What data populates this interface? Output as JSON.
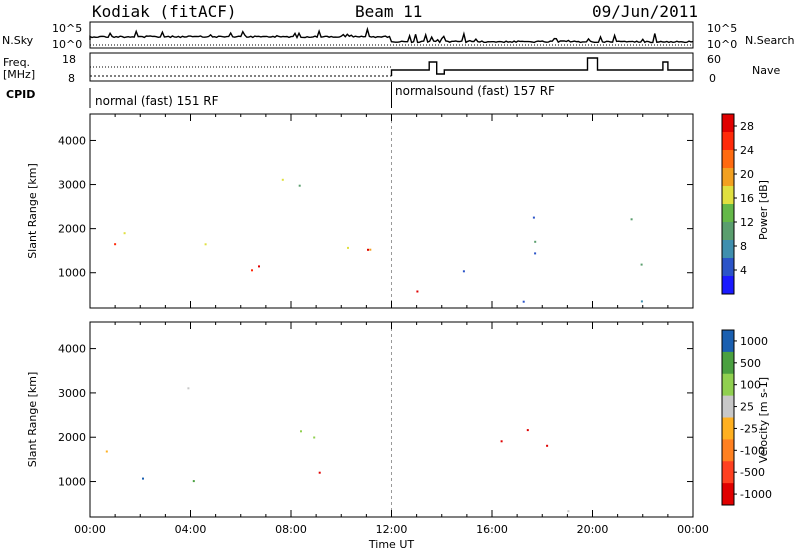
{
  "header": {
    "station": "Kodiak (fitACF)",
    "beam": "Beam 11",
    "date": "09/Jun/2011"
  },
  "summary": {
    "left_top_label": "N.Sky",
    "left_mid_label_1": "Freq.",
    "left_mid_label_2": "[MHz]",
    "left_cpid_label": "CPID",
    "right_top_label": "N.Search",
    "right_mid_label": "Nave",
    "noise_axis_top": "10^5",
    "noise_axis_bottom": "10^0",
    "freq_axis_top": "18",
    "freq_axis_bottom": "8",
    "nave_axis_top": "60",
    "nave_axis_bottom": "0",
    "cpid_segments": [
      {
        "label": "normal (fast) 151 RF",
        "start_hour": 0
      },
      {
        "label": "normalsound (fast) 157 RF",
        "start_hour": 12
      }
    ]
  },
  "colors": {
    "power": [
      "#1a1aff",
      "#2b54c8",
      "#3f8fae",
      "#5a9e6e",
      "#64b848",
      "#e0e040",
      "#f2a020",
      "#ff6a10",
      "#ff2a0a",
      "#e00000"
    ],
    "velocity": [
      "#e00000",
      "#ff4020",
      "#ff8020",
      "#ffb020",
      "#c8c8c8",
      "#90d050",
      "#4aa040",
      "#1a5fb0"
    ],
    "ground_scatter": "#bebebe"
  },
  "chart_data": [
    {
      "type": "heatmap",
      "name": "power_panel",
      "xlabel": "",
      "ylabel": "Slant Range [km]",
      "x_range_hours": [
        0,
        24
      ],
      "ylim": [
        200,
        4600
      ],
      "y_ticks": [
        "1000",
        "2000",
        "3000",
        "4000"
      ],
      "colorbar_label": "Power [dB]",
      "colorbar_ticks": [
        "4",
        "8",
        "12",
        "16",
        "20",
        "24",
        "28"
      ],
      "regions": [
        {
          "x0": 0.3,
          "x1": 12,
          "y0": 1500,
          "y1": 2300,
          "level": 0.55
        },
        {
          "x0": 4,
          "x1": 11.5,
          "y0": 700,
          "y1": 1800,
          "level": 0.85
        },
        {
          "x0": 0.5,
          "x1": 4.5,
          "y0": 1300,
          "y1": 1700,
          "level": 0.9
        },
        {
          "x0": 9,
          "x1": 13.5,
          "y0": 300,
          "y1": 700,
          "level": 0.95
        },
        {
          "x0": 0.5,
          "x1": 4,
          "y0": 2000,
          "y1": 2200,
          "level": 0.35
        },
        {
          "x0": 3,
          "x1": 9,
          "y0": 2700,
          "y1": 3500,
          "level": 0.4
        },
        {
          "x0": 14,
          "x1": 24,
          "y0": 1000,
          "y1": 1700,
          "level": 0.25
        },
        {
          "x0": 16,
          "x1": 23.5,
          "y0": 1700,
          "y1": 2600,
          "level": 0.2
        },
        {
          "x0": 0,
          "x1": 24,
          "y0": 230,
          "y1": 400,
          "level": 0.15
        }
      ]
    },
    {
      "type": "heatmap",
      "name": "velocity_panel",
      "xlabel": "Time UT",
      "ylabel": "Slant Range [km]",
      "x_range_hours": [
        0,
        24
      ],
      "x_ticks": [
        "00:00",
        "04:00",
        "08:00",
        "12:00",
        "16:00",
        "20:00",
        "00:00"
      ],
      "ylim": [
        200,
        4600
      ],
      "y_ticks": [
        "1000",
        "2000",
        "3000",
        "4000"
      ],
      "colorbar_label": "Velocity [m s-1]",
      "colorbar_ticks": [
        "1000",
        "500",
        "100",
        "25",
        "-25",
        "-100",
        "-500",
        "-1000"
      ],
      "regions": [
        {
          "x0": 0.5,
          "x1": 12,
          "y0": 1700,
          "y1": 2300,
          "level": 0.5
        },
        {
          "x0": 0.3,
          "x1": 8,
          "y0": 1000,
          "y1": 1800,
          "level": 0.8
        },
        {
          "x0": 8,
          "x1": 12,
          "y0": 800,
          "y1": 1300,
          "level": 0.2
        },
        {
          "x0": 12,
          "x1": 14,
          "y0": 400,
          "y1": 900,
          "level": 0.5
        },
        {
          "x0": 15,
          "x1": 21,
          "y0": 1400,
          "y1": 2500,
          "level": 0.15
        },
        {
          "x0": 14,
          "x1": 24,
          "y0": 250,
          "y1": 400,
          "level": 0.6
        },
        {
          "x0": 3,
          "x1": 8,
          "y0": 3000,
          "y1": 3500,
          "level": 0.5
        }
      ]
    }
  ]
}
